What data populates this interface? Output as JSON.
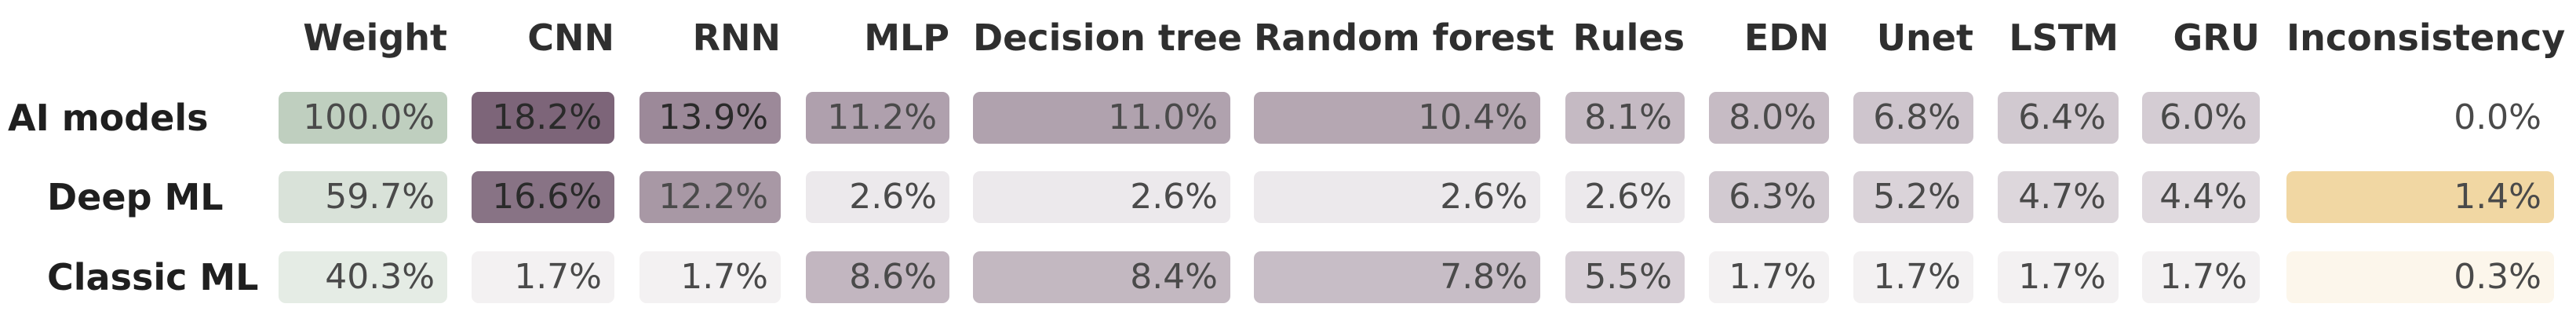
{
  "chart_data": {
    "type": "heatmap",
    "columns": [
      "Weight",
      "CNN",
      "RNN",
      "MLP",
      "Decision tree",
      "Random forest",
      "Rules",
      "EDN",
      "Unet",
      "LSTM",
      "GRU",
      "Inconsistency"
    ],
    "rows": [
      {
        "label": "AI models",
        "values": [
          "100.0%",
          "18.2%",
          "13.9%",
          "11.2%",
          "11.0%",
          "10.4%",
          "8.1%",
          "8.0%",
          "6.8%",
          "6.4%",
          "6.0%",
          "0.0%"
        ]
      },
      {
        "label": "Deep ML",
        "values": [
          "59.7%",
          "16.6%",
          "12.2%",
          "2.6%",
          "2.6%",
          "2.6%",
          "2.6%",
          "6.3%",
          "5.2%",
          "4.7%",
          "4.4%",
          "1.4%"
        ]
      },
      {
        "label": "Classic ML",
        "values": [
          "40.3%",
          "1.7%",
          "1.7%",
          "8.6%",
          "8.4%",
          "7.8%",
          "5.5%",
          "1.7%",
          "1.7%",
          "1.7%",
          "1.7%",
          "0.3%"
        ]
      }
    ],
    "colors": {
      "weight_scale": [
        "#ffffff",
        "#bfcfbf"
      ],
      "model_scale": [
        "#ffffff",
        "#7d6579"
      ],
      "inconsistency_scale": [
        "#ffffff",
        "#f1d7a3"
      ]
    }
  }
}
